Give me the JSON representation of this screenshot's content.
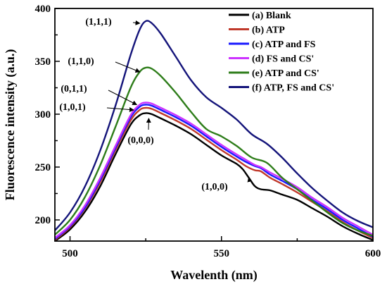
{
  "chart_data": {
    "type": "line",
    "title": "",
    "xlabel": "Wavelenth (nm)",
    "ylabel": "Fluorescence intensity (a.u.)",
    "xlim": [
      495,
      600
    ],
    "ylim": [
      180,
      400
    ],
    "xticks": [
      500,
      550,
      600
    ],
    "yticks": [
      200,
      250,
      300,
      350,
      400
    ],
    "grid": false,
    "legend_position": "top-right",
    "series": [
      {
        "name": "(a) Blank",
        "color": "#000000",
        "x": [
          495,
          500,
          505,
          510,
          515,
          520,
          523,
          525,
          527,
          530,
          535,
          540,
          545,
          550,
          555,
          557,
          559,
          561,
          563,
          566,
          570,
          575,
          580,
          585,
          590,
          595,
          600
        ],
        "y": [
          180,
          191,
          208,
          232,
          262,
          290,
          299,
          301,
          300,
          296,
          289,
          281,
          271,
          261,
          253,
          248,
          240,
          232,
          229,
          228,
          224,
          219,
          211,
          203,
          194,
          187,
          181
        ]
      },
      {
        "name": "(b) ATP",
        "color": "#c0392b",
        "x": [
          495,
          500,
          505,
          510,
          515,
          520,
          523,
          525,
          527,
          530,
          535,
          540,
          545,
          550,
          555,
          558,
          561,
          563,
          566,
          570,
          575,
          580,
          585,
          590,
          595,
          600
        ],
        "y": [
          181,
          193,
          211,
          236,
          266,
          294,
          304,
          306,
          305,
          301,
          294,
          286,
          276,
          266,
          257,
          251,
          247,
          246,
          240,
          234,
          226,
          217,
          208,
          198,
          190,
          183
        ]
      },
      {
        "name": "(c) ATP and FS",
        "color": "#1a1aff",
        "x": [
          495,
          500,
          505,
          510,
          515,
          520,
          523,
          525,
          527,
          530,
          535,
          540,
          545,
          550,
          555,
          558,
          561,
          563,
          566,
          570,
          575,
          580,
          585,
          590,
          595,
          600
        ],
        "y": [
          182,
          194,
          212,
          238,
          268,
          297,
          307,
          309,
          308,
          304,
          297,
          289,
          279,
          269,
          260,
          255,
          251,
          249,
          243,
          237,
          229,
          219,
          210,
          200,
          192,
          184
        ]
      },
      {
        "name": "(d) FS and CS'",
        "color": "#cc33ff",
        "x": [
          495,
          500,
          505,
          510,
          515,
          520,
          523,
          525,
          527,
          530,
          535,
          540,
          545,
          550,
          555,
          558,
          561,
          563,
          566,
          570,
          575,
          580,
          585,
          590,
          595,
          600
        ],
        "y": [
          183,
          195,
          214,
          240,
          270,
          299,
          309,
          311,
          310,
          306,
          299,
          291,
          281,
          271,
          262,
          257,
          252,
          250,
          245,
          239,
          231,
          221,
          212,
          202,
          194,
          186
        ]
      },
      {
        "name": "(e) ATP and CS'",
        "color": "#2e7d1a",
        "x": [
          495,
          500,
          505,
          510,
          515,
          520,
          523,
          525,
          527,
          530,
          535,
          540,
          545,
          550,
          555,
          560,
          565,
          570,
          575,
          580,
          585,
          590,
          595,
          600
        ],
        "y": [
          186,
          200,
          222,
          252,
          288,
          325,
          340,
          344,
          343,
          336,
          320,
          302,
          286,
          279,
          270,
          259,
          254,
          240,
          229,
          218,
          207,
          197,
          190,
          185
        ]
      },
      {
        "name": "(f) ATP, FS and CS'",
        "color": "#14147a",
        "x": [
          495,
          500,
          505,
          510,
          515,
          520,
          523,
          525,
          527,
          530,
          535,
          540,
          545,
          550,
          555,
          560,
          565,
          570,
          575,
          580,
          585,
          590,
          595,
          600
        ],
        "y": [
          190,
          207,
          232,
          266,
          308,
          356,
          380,
          388,
          386,
          376,
          354,
          332,
          316,
          306,
          295,
          281,
          272,
          259,
          244,
          230,
          218,
          207,
          199,
          193
        ]
      }
    ],
    "annotations": [
      {
        "text": "(1,1,1)",
        "target": [
          523,
          386
        ]
      },
      {
        "text": "(1,1,0)",
        "target": [
          523,
          340
        ]
      },
      {
        "text": "(0,1,1)",
        "target": [
          522,
          309
        ]
      },
      {
        "text": "(1,0,1)",
        "target": [
          521,
          304
        ]
      },
      {
        "text": "(0,0,0)",
        "target": [
          526,
          304
        ]
      },
      {
        "text": "(1,0,0)",
        "target": [
          559,
          240
        ]
      }
    ]
  }
}
